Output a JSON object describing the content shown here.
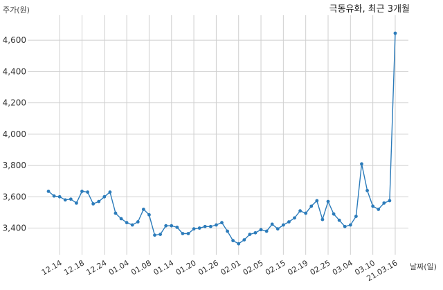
{
  "chart_data": {
    "type": "line",
    "title": "극동유화, 최근 3개월",
    "xlabel": "날짜(일)",
    "ylabel": "주가(원)",
    "ylim": [
      3230,
      4760
    ],
    "yticks": [
      3400,
      3600,
      3800,
      4000,
      4200,
      4400,
      4600
    ],
    "ytick_labels": [
      "3,400",
      "3,600",
      "3,800",
      "4,000",
      "4,200",
      "4,400",
      "4,600"
    ],
    "xtick_labels": [
      "12.14",
      "12.18",
      "12.24",
      "01.04",
      "01.08",
      "01.14",
      "01.20",
      "01.26",
      "02.01",
      "02.05",
      "02.15",
      "02.19",
      "02.25",
      "03.04",
      "03.10",
      "21.03.16"
    ],
    "xtick_positions": [
      3,
      7,
      11,
      15,
      19,
      23,
      27,
      31,
      35,
      39,
      43,
      47,
      51,
      55,
      59,
      63
    ],
    "grid": true,
    "color": "#2b7bba",
    "series": [
      {
        "values": [
          3635,
          3605,
          3600,
          3580,
          3585,
          3560,
          3635,
          3630,
          3555,
          3570,
          3600,
          3630,
          3495,
          3460,
          3435,
          3420,
          3440,
          3520,
          3485,
          3355,
          3360,
          3415,
          3415,
          3405,
          3365,
          3365,
          3395,
          3400,
          3410,
          3410,
          3420,
          3435,
          3380,
          3320,
          3300,
          3325,
          3360,
          3370,
          3390,
          3380,
          3425,
          3395,
          3420,
          3440,
          3465,
          3510,
          3495,
          3540,
          3575,
          3455,
          3570,
          3490,
          3450,
          3410,
          3420,
          3475,
          3810,
          3640,
          3540,
          3520,
          3560,
          3575,
          4645
        ]
      }
    ]
  }
}
